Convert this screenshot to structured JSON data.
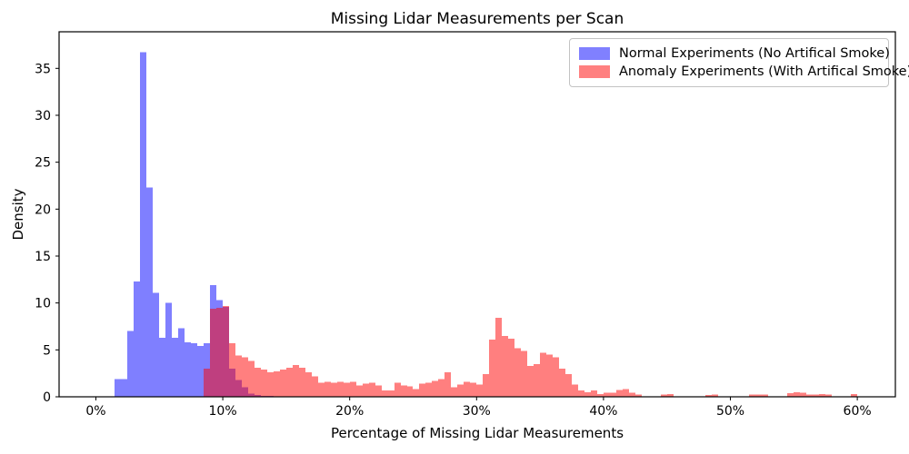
{
  "figure": {
    "background": "#ffffff"
  },
  "chart_data": {
    "type": "histogram",
    "title": "Missing Lidar Measurements per Scan",
    "xlabel": "Percentage of Missing Lidar Measurements",
    "ylabel": "Density",
    "x_tick_labels": [
      "0%",
      "10%",
      "20%",
      "30%",
      "40%",
      "50%",
      "60%"
    ],
    "x_tick_values": [
      0,
      10,
      20,
      30,
      40,
      50,
      60
    ],
    "y_tick_values": [
      0,
      5,
      10,
      15,
      20,
      25,
      30,
      35
    ],
    "xlim": [
      -2.9,
      63.0
    ],
    "ylim": [
      0,
      38.9
    ],
    "bin_width_percent": 0.5,
    "grid": false,
    "legend_position": "upper right",
    "overlap_color": "#bf4080",
    "series": [
      {
        "name": "Normal Experiments (No Artifical Smoke)",
        "color": "#0000ff",
        "alpha": 0.5,
        "rendered_color": "#8080ff",
        "bins_start_percent": 1.5,
        "values": [
          1.9,
          1.9,
          7.0,
          12.3,
          36.7,
          22.3,
          11.1,
          6.3,
          10.0,
          6.3,
          7.3,
          5.8,
          5.7,
          5.4,
          5.7,
          11.9,
          10.3,
          9.6,
          3.0,
          1.8,
          1.0,
          0.35,
          0.2,
          0.1,
          0.1
        ]
      },
      {
        "name": "Anomaly Experiments (With Artifical Smoke)",
        "color": "#ff0000",
        "alpha": 0.5,
        "rendered_color": "#ff8080",
        "bins_start_percent": 8.5,
        "values": [
          3.0,
          9.4,
          9.5,
          9.7,
          5.7,
          4.4,
          4.2,
          3.8,
          3.1,
          2.9,
          2.6,
          2.7,
          2.9,
          3.1,
          3.4,
          3.1,
          2.6,
          2.2,
          1.5,
          1.6,
          1.5,
          1.6,
          1.5,
          1.6,
          1.2,
          1.4,
          1.5,
          1.2,
          0.7,
          0.7,
          1.5,
          1.2,
          1.1,
          0.8,
          1.4,
          1.5,
          1.7,
          1.9,
          2.6,
          1.0,
          1.3,
          1.6,
          1.5,
          1.3,
          2.4,
          6.1,
          8.4,
          6.5,
          6.2,
          5.2,
          4.9,
          3.3,
          3.5,
          4.7,
          4.5,
          4.2,
          3.0,
          2.4,
          1.3,
          0.7,
          0.5,
          0.7,
          0.3,
          0.45,
          0.45,
          0.75,
          0.8,
          0.45,
          0.25,
          0,
          0,
          0,
          0.25,
          0.3,
          0,
          0,
          0,
          0,
          0,
          0.2,
          0.25,
          0,
          0,
          0,
          0,
          0,
          0.25,
          0.25,
          0.25,
          0,
          0,
          0,
          0.4,
          0.5,
          0.45,
          0.25,
          0.25,
          0.3,
          0.25,
          0,
          0,
          0,
          0.3
        ]
      }
    ]
  }
}
